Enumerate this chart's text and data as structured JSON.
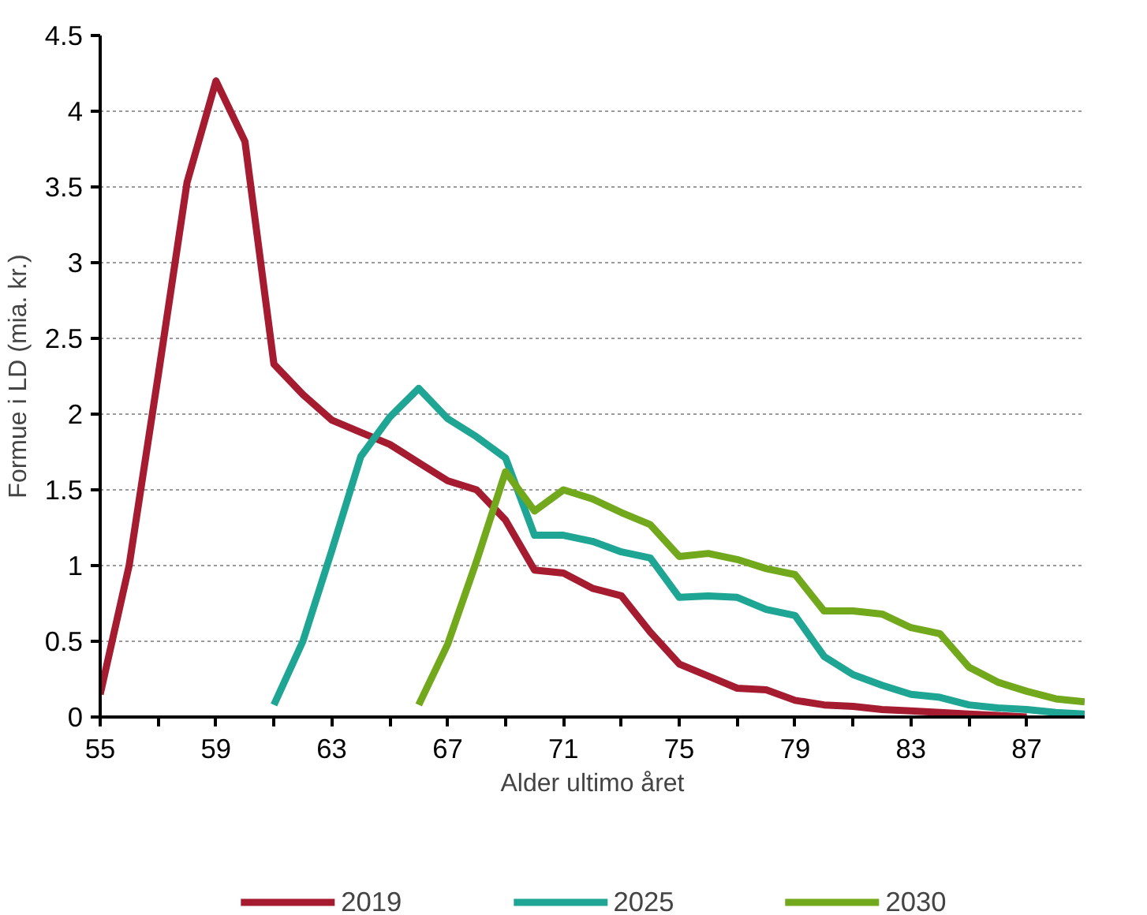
{
  "chart_data": {
    "type": "line",
    "xlabel": "Alder ultimo året",
    "ylabel": "Formue i LD (mia. kr.)",
    "xlim": [
      55,
      89
    ],
    "ylim": [
      0,
      4.5
    ],
    "xticks": [
      55,
      {
        "value": 57,
        "label": null
      },
      59,
      {
        "value": 61,
        "label": null
      },
      63,
      {
        "value": 65,
        "label": null
      },
      67,
      {
        "value": 69,
        "label": null
      },
      71,
      {
        "value": 73,
        "label": null
      },
      75,
      {
        "value": 77,
        "label": null
      },
      79,
      {
        "value": 81,
        "label": null
      },
      83,
      {
        "value": 85,
        "label": null
      },
      87
    ],
    "yticks": [
      0,
      0.5,
      1,
      1.5,
      2,
      2.5,
      3,
      3.5,
      4,
      4.5
    ],
    "grid": "y",
    "legend": "bottom",
    "line_style": "solid",
    "series": [
      {
        "name": "2019",
        "color": "#a51c30",
        "x": [
          55,
          56,
          57,
          58,
          59,
          60,
          61,
          62,
          63,
          64,
          65,
          66,
          67,
          68,
          69,
          70,
          71,
          72,
          73,
          74,
          75,
          76,
          77,
          78,
          79,
          80,
          81,
          82,
          83,
          84,
          85,
          86,
          87
        ],
        "values": [
          0.15,
          1.0,
          2.25,
          3.53,
          4.2,
          3.8,
          2.33,
          2.13,
          1.96,
          1.88,
          1.8,
          1.68,
          1.56,
          1.5,
          1.3,
          0.97,
          0.95,
          0.85,
          0.8,
          0.56,
          0.35,
          0.27,
          0.19,
          0.18,
          0.11,
          0.08,
          0.07,
          0.05,
          0.04,
          0.03,
          0.02,
          0.01,
          0.0
        ]
      },
      {
        "name": "2025",
        "color": "#1fa594",
        "x": [
          61,
          62,
          63,
          64,
          65,
          66,
          67,
          68,
          69,
          70,
          71,
          72,
          73,
          74,
          75,
          76,
          77,
          78,
          79,
          80,
          81,
          82,
          83,
          84,
          85,
          86,
          87,
          88,
          89
        ],
        "values": [
          0.08,
          0.5,
          1.1,
          1.72,
          1.98,
          2.17,
          1.97,
          1.85,
          1.71,
          1.2,
          1.2,
          1.16,
          1.09,
          1.05,
          0.79,
          0.8,
          0.79,
          0.71,
          0.67,
          0.4,
          0.28,
          0.21,
          0.15,
          0.13,
          0.08,
          0.06,
          0.05,
          0.03,
          0.02
        ]
      },
      {
        "name": "2030",
        "color": "#72a81c",
        "x": [
          66,
          67,
          68,
          69,
          70,
          71,
          72,
          73,
          74,
          75,
          76,
          77,
          78,
          79,
          80,
          81,
          82,
          83,
          84,
          85,
          86,
          87,
          88,
          89
        ],
        "values": [
          0.08,
          0.48,
          1.03,
          1.62,
          1.36,
          1.5,
          1.44,
          1.35,
          1.27,
          1.06,
          1.08,
          1.04,
          0.98,
          0.94,
          0.7,
          0.7,
          0.68,
          0.59,
          0.55,
          0.33,
          0.23,
          0.17,
          0.12,
          0.1
        ]
      }
    ]
  }
}
